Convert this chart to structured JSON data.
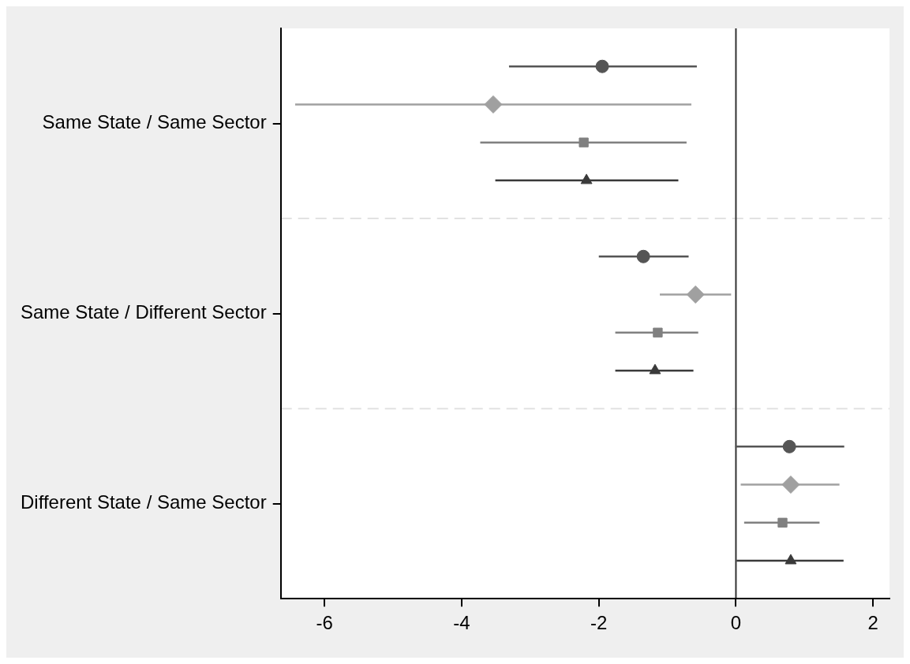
{
  "chart_data": {
    "type": "scatter",
    "orientation": "horizontal",
    "categories": [
      "Same State / Same Sector",
      "Same State / Different Sector",
      "Different State / Same Sector"
    ],
    "series": [
      {
        "color": "#555555",
        "marker": "circle",
        "values": [
          -1.95,
          -1.35,
          0.78
        ],
        "errors": [
          [
            -3.31,
            -0.57
          ],
          [
            -2.0,
            -0.69
          ],
          [
            -0.01,
            1.58
          ]
        ]
      },
      {
        "color": "#a0a0a0",
        "marker": "diamond",
        "values": [
          -3.54,
          -0.59,
          0.8
        ],
        "errors": [
          [
            -6.43,
            -0.65
          ],
          [
            -1.11,
            -0.07
          ],
          [
            0.07,
            1.51
          ]
        ]
      },
      {
        "color": "#808080",
        "marker": "square",
        "values": [
          -2.22,
          -1.14,
          0.68
        ],
        "errors": [
          [
            -3.73,
            -0.72
          ],
          [
            -1.76,
            -0.55
          ],
          [
            0.12,
            1.22
          ]
        ]
      },
      {
        "color": "#3a3a3a",
        "marker": "triangle",
        "values": [
          -2.18,
          -1.18,
          0.8
        ],
        "errors": [
          [
            -3.51,
            -0.84
          ],
          [
            -1.76,
            -0.62
          ],
          [
            0.01,
            1.57
          ]
        ]
      }
    ],
    "xlim": [
      -6.64,
      2.24
    ],
    "xticks": [
      -6,
      -4,
      -2,
      0,
      2
    ],
    "ref_lines": [
      {
        "axis": "x",
        "value": 0,
        "color": "#333333"
      }
    ],
    "grid": "y"
  }
}
